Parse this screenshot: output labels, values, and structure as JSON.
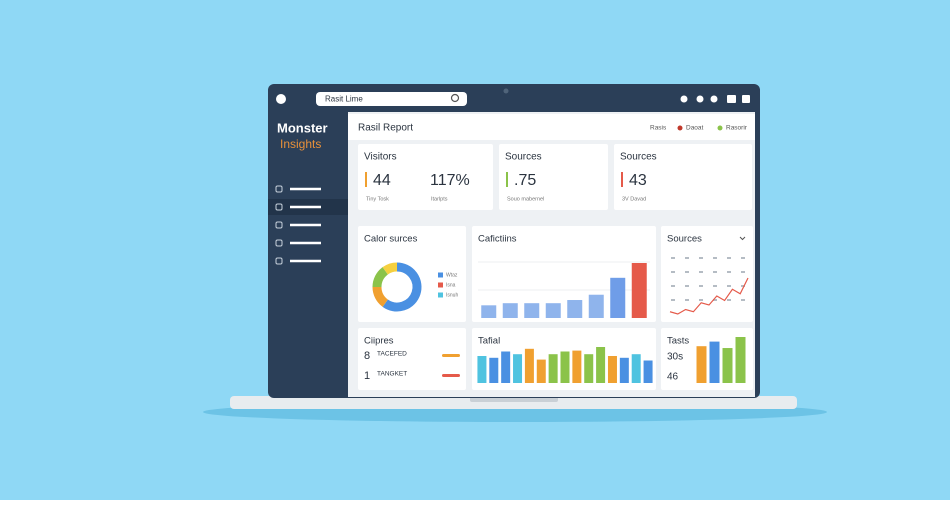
{
  "browser": {
    "search": "Rasit Lime"
  },
  "sidebar": {
    "logo": "Monster",
    "logo_sub": "Insights"
  },
  "header": {
    "title": "Rasil Report",
    "actions": [
      "Rasis",
      "Daoat",
      "Rasorir"
    ]
  },
  "cards": [
    {
      "title": "Visitors",
      "value": "44",
      "value2": "117%",
      "caption": "Tiny Tosk",
      "caption2": "Itarlpts",
      "color": "#f0a030"
    },
    {
      "title": "Sources",
      "value": ".75",
      "caption": "Souo mabernel",
      "color": "#8bc34a"
    },
    {
      "title": "Sources",
      "value": "43",
      "caption": "3V Davad",
      "color": "#e55a4a"
    }
  ],
  "panels": {
    "color_sources": {
      "title": "Calor surces",
      "values": [
        60,
        15,
        15,
        10
      ],
      "colors": [
        "#4a90e2",
        "#f0a030",
        "#8bc34a",
        "#f5d040"
      ],
      "legend": [
        {
          "label": "Wtaz",
          "color": "#4a90e2"
        },
        {
          "label": "Isna",
          "color": "#e55a4a"
        },
        {
          "label": "Isnuh",
          "color": "#4fc3e0"
        }
      ]
    },
    "activities": {
      "title": "Cafictiins",
      "values": [
        12,
        14,
        14,
        14,
        17,
        22,
        38,
        52
      ],
      "colors": [
        "#8fb4ec",
        "#8fb4ec",
        "#8fb4ec",
        "#8fb4ec",
        "#8fb4ec",
        "#8fb4ec",
        "#6f9de8",
        "#e55a4a"
      ]
    },
    "sources_trend": {
      "title": "Sources",
      "values": [
        5,
        4,
        6,
        5,
        9,
        8,
        12,
        10,
        15,
        13,
        20
      ],
      "color": "#e55a4a"
    },
    "clips": {
      "title": "Ciipres",
      "rows": [
        {
          "value": "8",
          "label": "TACEFED",
          "color": "#f0a030"
        },
        {
          "value": "1",
          "label": "TANGKET",
          "color": "#e55a4a"
        }
      ]
    },
    "total": {
      "title": "Tafial",
      "values": [
        30,
        28,
        35,
        32,
        38,
        26,
        32,
        35,
        36,
        32,
        40,
        30,
        28,
        32,
        25
      ],
      "colors": [
        "#4fc3e0",
        "#4a90e2",
        "#4a90e2",
        "#4fc3e0",
        "#f0a030",
        "#f0a030",
        "#8bc34a",
        "#8bc34a",
        "#f0a030",
        "#8bc34a",
        "#8bc34a",
        "#f0a030",
        "#4a90e2",
        "#4fc3e0",
        "#4a90e2"
      ]
    },
    "tests": {
      "title": "Tasts",
      "stats": [
        "30s",
        "46"
      ],
      "values": [
        40,
        45,
        38,
        50
      ],
      "colors": [
        "#f0a030",
        "#4a90e2",
        "#8bc34a",
        "#8bc34a"
      ]
    }
  }
}
